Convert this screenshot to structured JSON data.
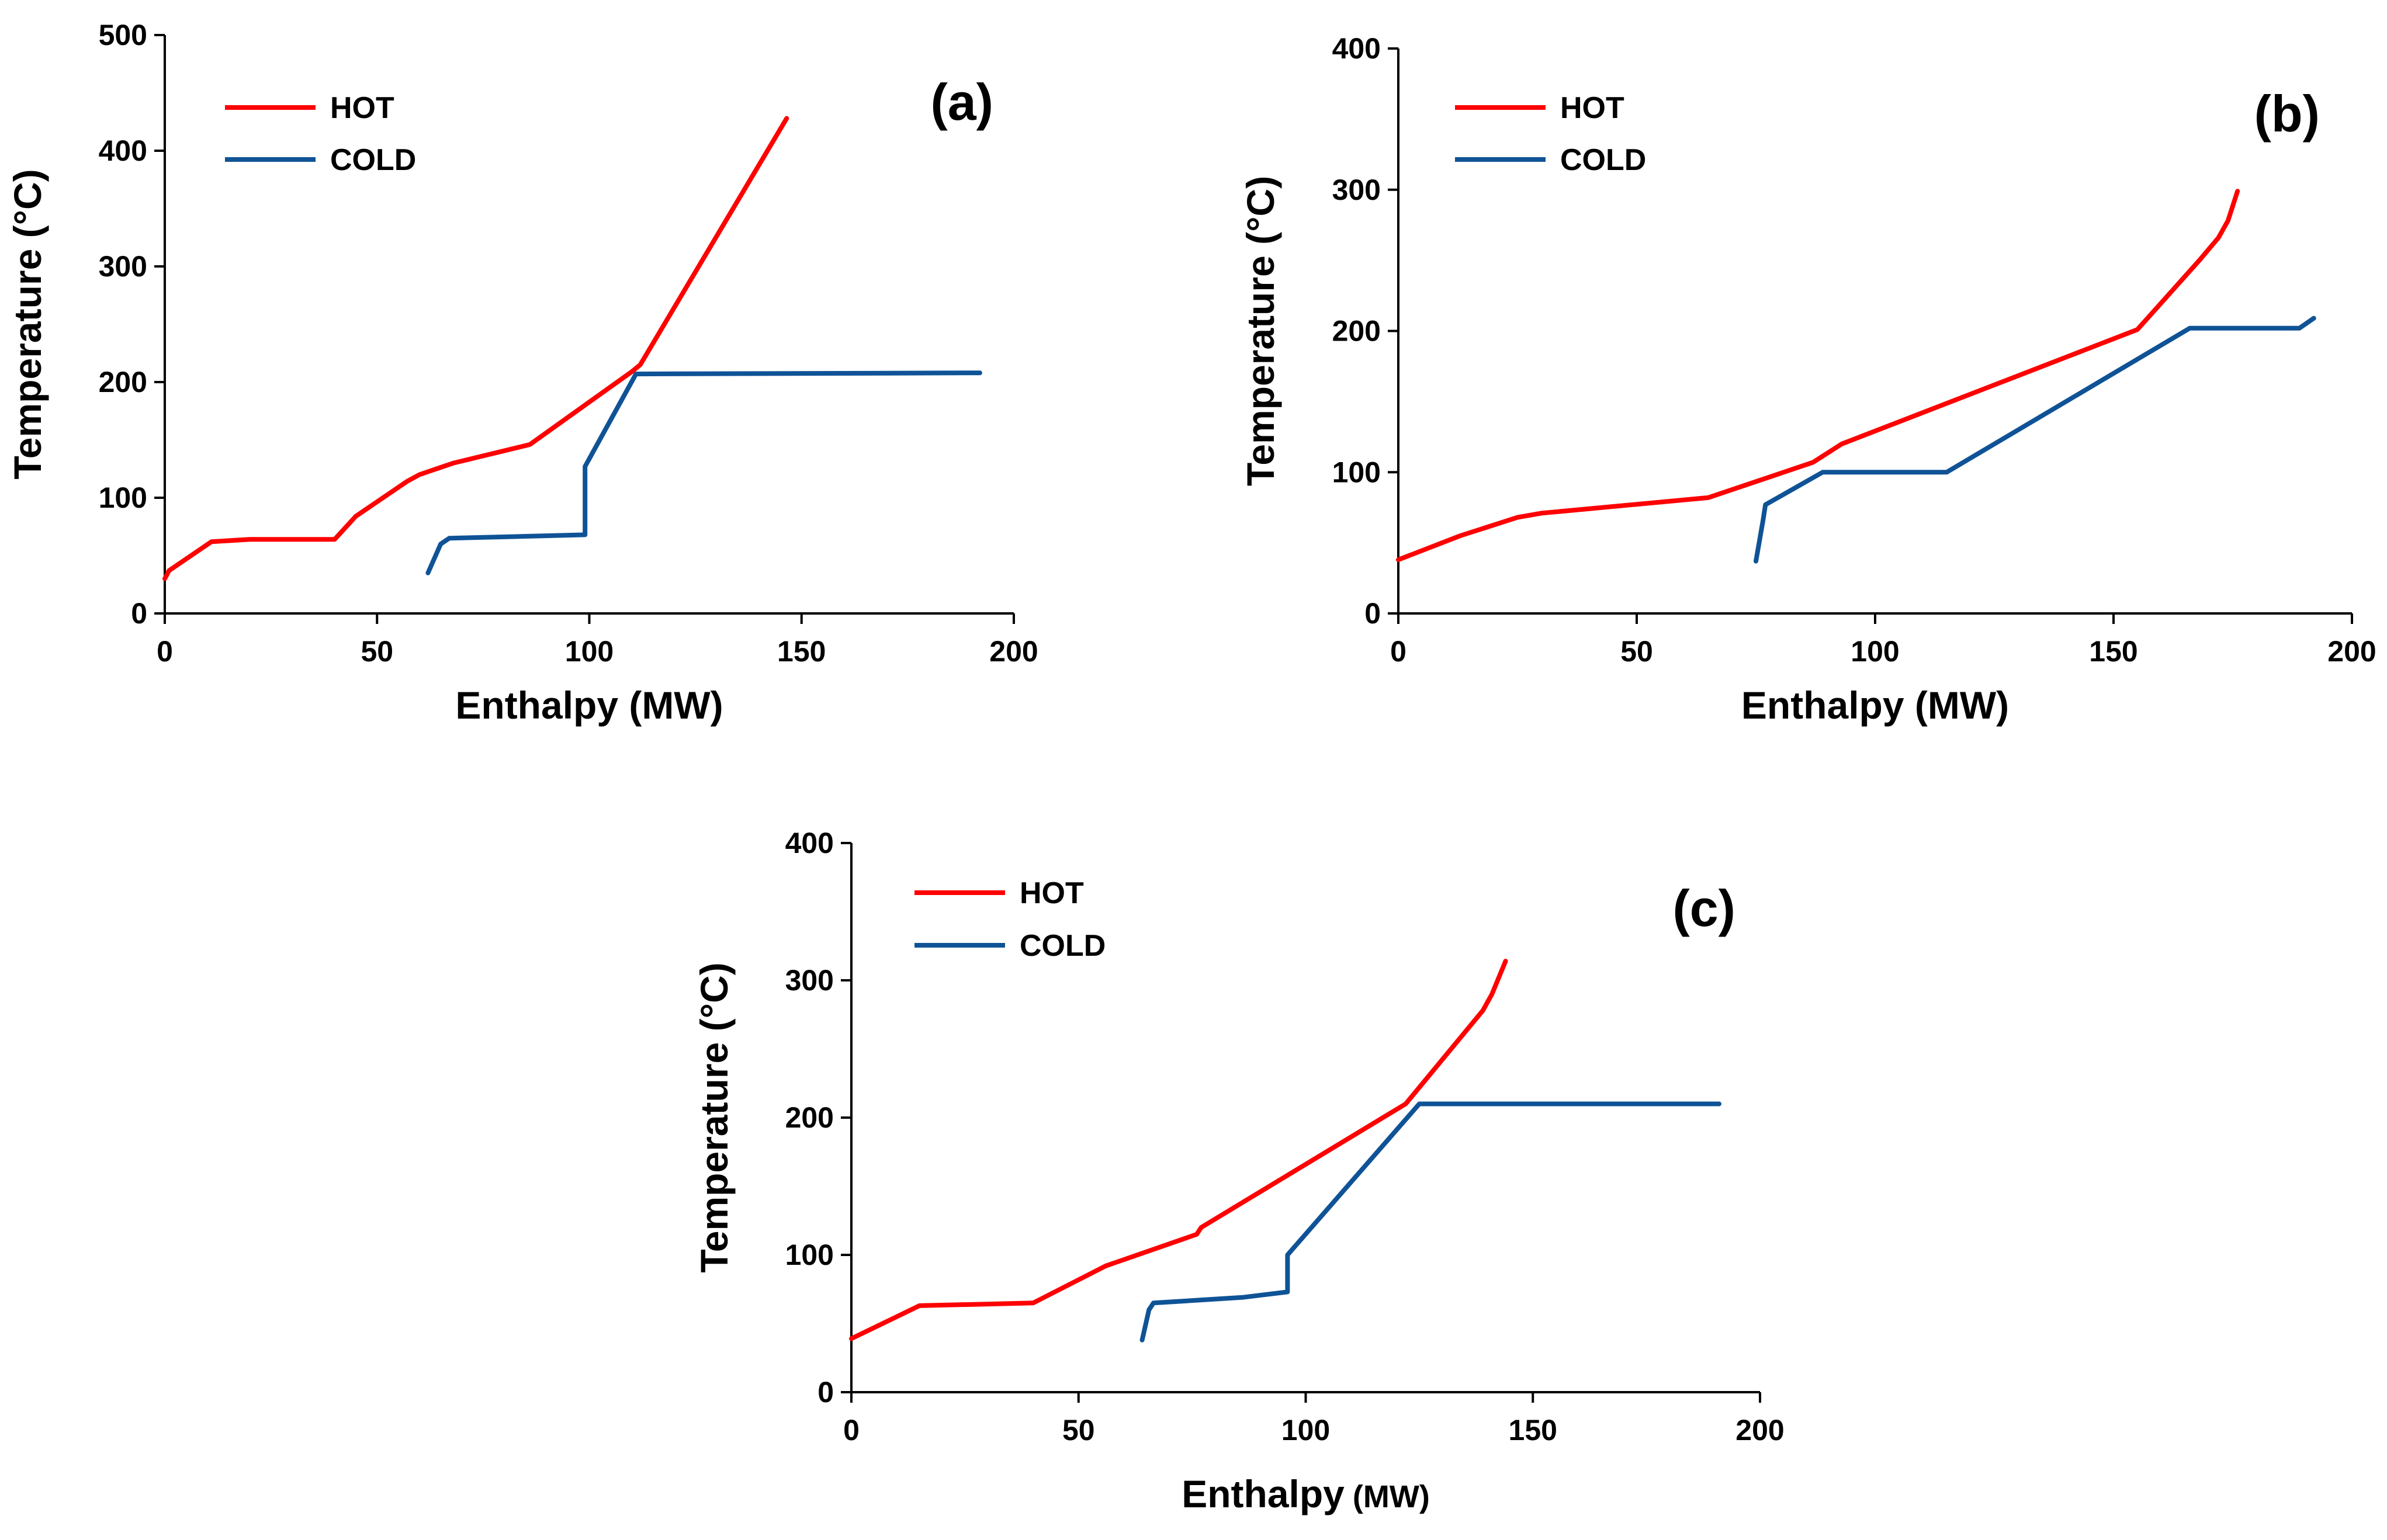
{
  "chart_data": [
    {
      "type": "line",
      "panel_label": "(a)",
      "xlabel": "Enthalpy (MW)",
      "ylabel": "Temperature (°C)",
      "xlim": [
        0,
        200
      ],
      "ylim": [
        0,
        500
      ],
      "xticks": [
        "0",
        "50",
        "100",
        "150",
        "200"
      ],
      "yticks": [
        "0",
        "100",
        "200",
        "300",
        "400",
        "500"
      ],
      "legend_position": "top-left",
      "grid": false,
      "series": [
        {
          "name": "HOT",
          "color": "#ff0000",
          "x": [
            0,
            1,
            11,
            20,
            40,
            45,
            57,
            60,
            68,
            86,
            110,
            112,
            146.5
          ],
          "y": [
            30,
            37,
            62,
            64,
            64,
            84,
            114,
            120,
            130,
            146,
            209,
            215,
            428
          ]
        },
        {
          "name": "COLD",
          "color": "#0f5396",
          "x": [
            62,
            65,
            67,
            99,
            99,
            111,
            192
          ],
          "y": [
            35,
            60,
            65,
            68,
            127,
            207,
            208
          ]
        }
      ]
    },
    {
      "type": "line",
      "panel_label": "(b)",
      "xlabel": "Enthalpy (MW)",
      "ylabel": "Temperature (°C)",
      "xlim": [
        0,
        200
      ],
      "ylim": [
        0,
        400
      ],
      "xticks": [
        "0",
        "50",
        "100",
        "150",
        "200"
      ],
      "yticks": [
        "0",
        "100",
        "200",
        "300",
        "400"
      ],
      "legend_position": "top-left",
      "grid": false,
      "series": [
        {
          "name": "HOT",
          "color": "#ff0000",
          "x": [
            0,
            13,
            25,
            30,
            65,
            87,
            93,
            155,
            168,
            172,
            174,
            176
          ],
          "y": [
            38,
            55,
            68,
            71,
            82,
            107,
            120,
            201,
            250,
            266,
            278,
            299
          ]
        },
        {
          "name": "COLD",
          "color": "#0f5396",
          "x": [
            75,
            76.5,
            77,
            89,
            115,
            166,
            189,
            192
          ],
          "y": [
            37,
            66,
            77,
            100,
            100,
            202,
            202,
            209
          ]
        }
      ]
    },
    {
      "type": "line",
      "panel_label": "(c)",
      "xlabel": "Enthalpy",
      "xlabel_unit": "(MW)",
      "ylabel": "Temperature (°C)",
      "xlim": [
        0,
        200
      ],
      "ylim": [
        0,
        400
      ],
      "xticks": [
        "0",
        "50",
        "100",
        "150",
        "200"
      ],
      "yticks": [
        "0",
        "100",
        "200",
        "300",
        "400"
      ],
      "legend_position": "top-left",
      "grid": false,
      "series": [
        {
          "name": "HOT",
          "color": "#ff0000",
          "x": [
            0,
            15,
            40,
            56,
            76,
            77,
            122,
            139,
            141,
            144
          ],
          "y": [
            39,
            63,
            65,
            92,
            115,
            120,
            210,
            278,
            290,
            314
          ]
        },
        {
          "name": "COLD",
          "color": "#0f5396",
          "x": [
            64,
            65.5,
            66.5,
            86,
            96,
            96,
            125,
            191
          ],
          "y": [
            38,
            60,
            65,
            69,
            73,
            100,
            210,
            210
          ]
        }
      ]
    }
  ]
}
